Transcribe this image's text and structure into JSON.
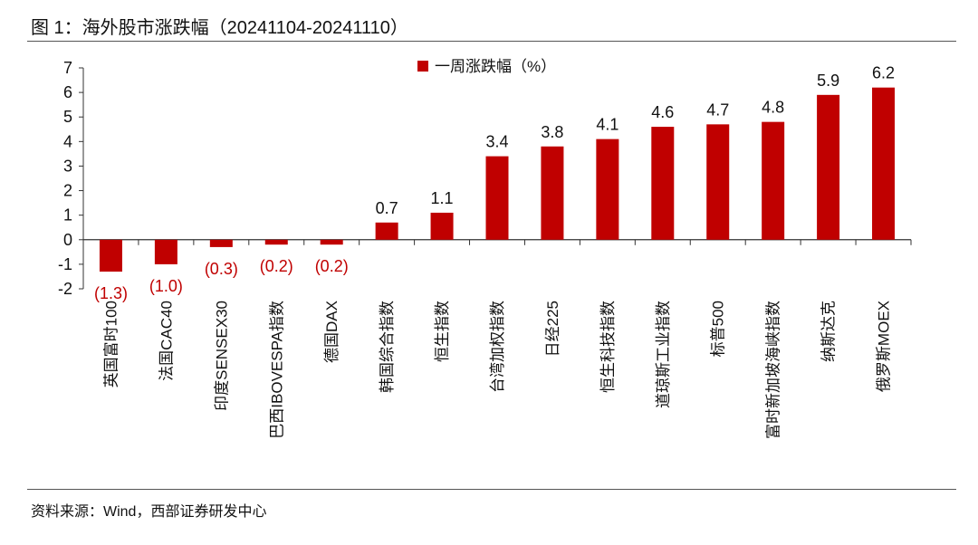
{
  "figure": {
    "title": "图 1：海外股市涨跌幅（20241104-20241110）",
    "source": "资料来源：Wind，西部证券研发中心"
  },
  "chart_data": {
    "type": "bar",
    "categories": [
      "英国富时100",
      "法国CAC40",
      "印度SENSEX30",
      "巴西IBOVESPA指数",
      "德国DAX",
      "韩国综合指数",
      "恒生指数",
      "台湾加权指数",
      "日经225",
      "恒生科技指数",
      "道琼斯工业指数",
      "标普500",
      "富时新加坡海峡指数",
      "纳斯达克",
      "俄罗斯MOEX"
    ],
    "series": [
      {
        "name": "一周涨跌幅（%）",
        "values": [
          -1.3,
          -1.0,
          -0.3,
          -0.2,
          -0.2,
          0.7,
          1.1,
          3.4,
          3.8,
          4.1,
          4.6,
          4.7,
          4.8,
          5.9,
          6.2
        ]
      }
    ],
    "data_labels": [
      "(1.3)",
      "(1.0)",
      "(0.3)",
      "(0.2)",
      "(0.2)",
      "0.7",
      "1.1",
      "3.4",
      "3.8",
      "4.1",
      "4.6",
      "4.7",
      "4.8",
      "5.9",
      "6.2"
    ],
    "y_ticks": [
      "-2",
      "-1",
      "0",
      "1",
      "2",
      "3",
      "4",
      "5",
      "6",
      "7"
    ],
    "ylim": [
      -2,
      7
    ],
    "grid": false,
    "legend_position": "top-center",
    "bar_color": "#c00000",
    "negative_label_color": "#c00000"
  }
}
